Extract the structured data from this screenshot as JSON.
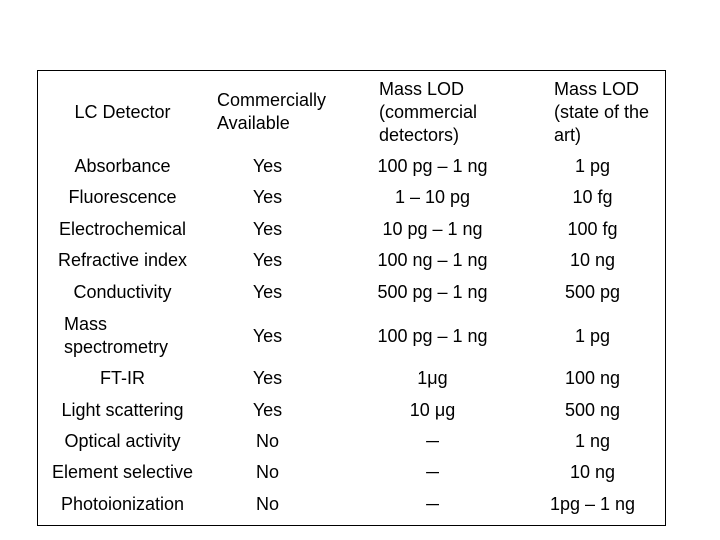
{
  "table": {
    "header": [
      "LC Detector",
      "Commercially Available",
      "Mass LOD (commercial detectors)",
      "Mass LOD (state of the art)"
    ],
    "rows": [
      [
        "Absorbance",
        "Yes",
        "100 pg – 1 ng",
        "1 pg"
      ],
      [
        "Fluorescence",
        "Yes",
        "1 – 10 pg",
        "10 fg"
      ],
      [
        "Electrochemical",
        "Yes",
        "10 pg – 1 ng",
        "100 fg"
      ],
      [
        "Refractive index",
        "Yes",
        "100 ng – 1 ng",
        "10 ng"
      ],
      [
        "Conductivity",
        "Yes",
        "500 pg – 1 ng",
        "500 pg"
      ],
      [
        "Mass spectrometry",
        "Yes",
        "100 pg – 1 ng",
        "1 pg"
      ],
      [
        "FT-IR",
        "Yes",
        "1μg",
        "100 ng"
      ],
      [
        "Light scattering",
        "Yes",
        "10 μg",
        "500 ng"
      ],
      [
        "Optical activity",
        "No",
        "─",
        "1 ng"
      ],
      [
        "Element selective",
        "No",
        "─",
        "10 ng"
      ],
      [
        "Photoionization",
        "No",
        "─",
        "1pg – 1 ng"
      ]
    ]
  }
}
